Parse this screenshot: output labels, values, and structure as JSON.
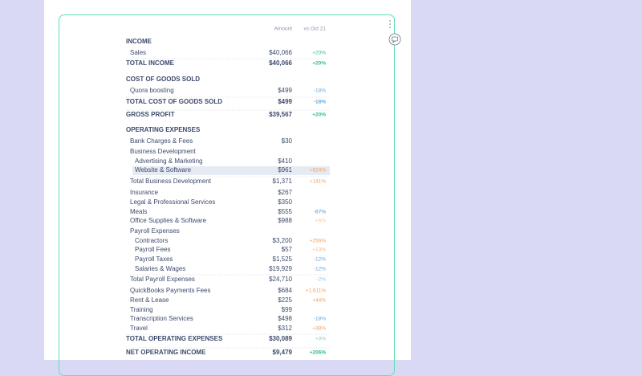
{
  "columns": {
    "amount": "Amount",
    "change": "vs Oct 21"
  },
  "rows": [
    {
      "label": "INCOME"
    },
    {
      "label": "Sales",
      "amount": "$40,066",
      "change": "+20%",
      "color": "#3bb89c"
    },
    {
      "label": "TOTAL INCOME",
      "amount": "$40,066",
      "change": "+20%",
      "color": "#3bb89c"
    },
    {
      "label": "COST OF GOODS SOLD"
    },
    {
      "label": "Quora boosting",
      "amount": "$499",
      "change": "-18%",
      "color": "#6aa6d8"
    },
    {
      "label": "TOTAL COST OF GOODS SOLD",
      "amount": "$499",
      "change": "-18%",
      "color": "#6aa6d8"
    },
    {
      "label": "GROSS PROFIT",
      "amount": "$39,567",
      "change": "+20%",
      "color": "#3bb89c"
    },
    {
      "label": "OPERATING EXPENSES"
    },
    {
      "label": "Bank Charges & Fees",
      "amount": "$30"
    },
    {
      "label": "Business Development"
    },
    {
      "label": "Advertising & Marketing",
      "amount": "$410"
    },
    {
      "label": "Website & Software",
      "amount": "$961",
      "change": "+924%",
      "color": "#f0a062"
    },
    {
      "label": "Total Business Development",
      "amount": "$1,371",
      "change": "+141%",
      "color": "#f0a062"
    },
    {
      "label": "Insurance",
      "amount": "$267"
    },
    {
      "label": "Legal & Professional Services",
      "amount": "$350"
    },
    {
      "label": "Meals",
      "amount": "$555",
      "change": "-67%",
      "color": "#3a9fc0"
    },
    {
      "label": "Office Supplies & Software",
      "amount": "$988",
      "change": "+6%",
      "color": "#f5c6a0"
    },
    {
      "label": "Payroll Expenses"
    },
    {
      "label": "Contractors",
      "amount": "$3,200",
      "change": "+256%",
      "color": "#f0a062"
    },
    {
      "label": "Payroll Fees",
      "amount": "$57",
      "change": "+13%",
      "color": "#f5b68a"
    },
    {
      "label": "Payroll Taxes",
      "amount": "$1,525",
      "change": "-12%",
      "color": "#6aa6d8"
    },
    {
      "label": "Salaries & Wages",
      "amount": "$19,929",
      "change": "-12%",
      "color": "#6aa6d8"
    },
    {
      "label": "Total Payroll Expenses",
      "amount": "$24,710",
      "change": "-2%",
      "color": "#9cc3e4"
    },
    {
      "label": "QuickBooks Payments Fees",
      "amount": "$684",
      "change": "+1,611%",
      "color": "#f0a062"
    },
    {
      "label": "Rent & Lease",
      "amount": "$225",
      "change": "+44%",
      "color": "#f0a062"
    },
    {
      "label": "Training",
      "amount": "$99"
    },
    {
      "label": "Transcription Services",
      "amount": "$498",
      "change": "-18%",
      "color": "#6aa6d8"
    },
    {
      "label": "Travel",
      "amount": "$312",
      "change": "+38%",
      "color": "#f0a062"
    },
    {
      "label": "TOTAL OPERATING EXPENSES",
      "amount": "$30,089",
      "change": "+0%",
      "color": "#b9d8cf"
    },
    {
      "label": "NET OPERATING INCOME",
      "amount": "$9,479",
      "change": "+206%",
      "color": "#2fb88f"
    }
  ]
}
